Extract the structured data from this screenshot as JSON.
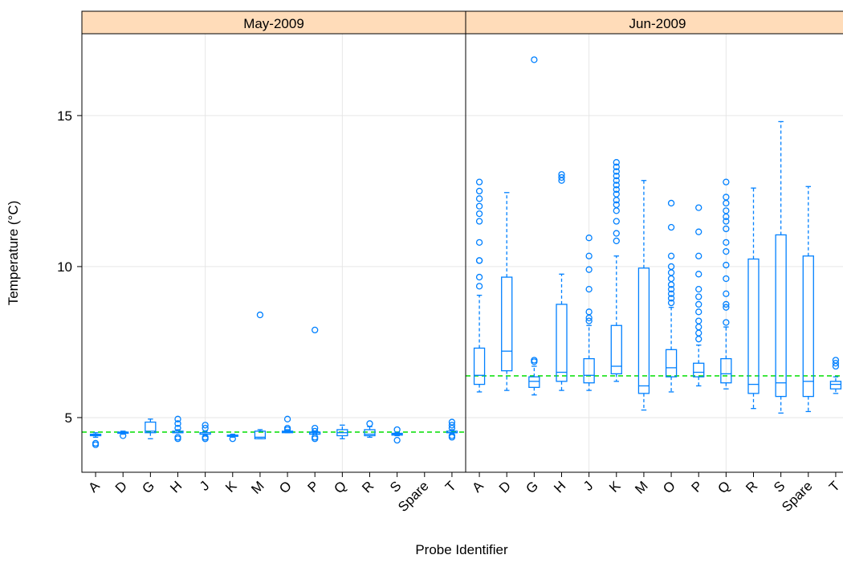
{
  "chart_data": {
    "type": "box",
    "y_label": "Temperature (°C)",
    "x_label": "Probe Identifier",
    "categories": [
      "A",
      "D",
      "G",
      "H",
      "J",
      "K",
      "M",
      "O",
      "P",
      "Q",
      "R",
      "S",
      "Spare",
      "T"
    ],
    "ylim": [
      3.19,
      17.71
    ],
    "yticks": [
      5,
      10,
      15
    ],
    "grid": true,
    "color": "#0080ff",
    "reference_color": "#00dd00",
    "strip_color": "#ffdcb9",
    "panels": [
      {
        "title": "May-2009",
        "reference": 4.52,
        "boxes": [
          {
            "whislo": 4.35,
            "q1": 4.4,
            "med": 4.43,
            "q3": 4.45,
            "whishi": 4.5,
            "fliers": [
              4.1,
              4.15
            ]
          },
          {
            "whislo": 4.45,
            "q1": 4.48,
            "med": 4.5,
            "q3": 4.52,
            "whishi": 4.55,
            "fliers": [
              4.4
            ]
          },
          {
            "whislo": 4.3,
            "q1": 4.5,
            "med": 4.55,
            "q3": 4.85,
            "whishi": 4.95,
            "fliers": []
          },
          {
            "whislo": 4.5,
            "q1": 4.5,
            "med": 4.5,
            "q3": 4.55,
            "whishi": 4.6,
            "fliers": [
              4.3,
              4.35,
              4.65,
              4.8,
              4.95
            ]
          },
          {
            "whislo": 4.4,
            "q1": 4.45,
            "med": 4.5,
            "q3": 4.5,
            "whishi": 4.55,
            "fliers": [
              4.3,
              4.35,
              4.65,
              4.75
            ]
          },
          {
            "whislo": 4.35,
            "q1": 4.38,
            "med": 4.4,
            "q3": 4.42,
            "whishi": 4.45,
            "fliers": [
              4.3
            ]
          },
          {
            "whislo": 4.3,
            "q1": 4.3,
            "med": 4.35,
            "q3": 4.55,
            "whishi": 4.6,
            "fliers": [
              8.4
            ]
          },
          {
            "whislo": 4.5,
            "q1": 4.5,
            "med": 4.52,
            "q3": 4.55,
            "whishi": 4.6,
            "fliers": [
              4.6,
              4.65,
              4.95
            ]
          },
          {
            "whislo": 4.45,
            "q1": 4.45,
            "med": 4.5,
            "q3": 4.52,
            "whishi": 4.55,
            "fliers": [
              4.3,
              4.35,
              4.55,
              4.65,
              7.9
            ]
          },
          {
            "whislo": 4.3,
            "q1": 4.4,
            "med": 4.5,
            "q3": 4.6,
            "whishi": 4.75,
            "fliers": []
          },
          {
            "whislo": 4.35,
            "q1": 4.4,
            "med": 4.45,
            "q3": 4.6,
            "whishi": 4.7,
            "fliers": [
              4.8
            ]
          },
          {
            "whislo": 4.4,
            "q1": 4.42,
            "med": 4.45,
            "q3": 4.48,
            "whishi": 4.5,
            "fliers": [
              4.25,
              4.6
            ]
          },
          null,
          {
            "whislo": 4.45,
            "q1": 4.5,
            "med": 4.5,
            "q3": 4.55,
            "whishi": 4.6,
            "fliers": [
              4.35,
              4.4,
              4.65,
              4.75,
              4.85
            ]
          }
        ]
      },
      {
        "title": "Jun-2009",
        "reference": 6.38,
        "boxes": [
          {
            "whislo": 5.85,
            "q1": 6.1,
            "med": 6.4,
            "q3": 7.3,
            "whishi": 9.05,
            "fliers": [
              9.35,
              9.65,
              10.2,
              10.2,
              10.8,
              11.5,
              11.75,
              12.0,
              12.25,
              12.5,
              12.8
            ]
          },
          {
            "whislo": 5.9,
            "q1": 6.55,
            "med": 7.2,
            "q3": 9.65,
            "whishi": 12.45,
            "fliers": []
          },
          {
            "whislo": 5.75,
            "q1": 6.0,
            "med": 6.2,
            "q3": 6.35,
            "whishi": 6.7,
            "fliers": [
              6.85,
              6.9,
              16.85
            ]
          },
          {
            "whislo": 5.9,
            "q1": 6.2,
            "med": 6.5,
            "q3": 8.75,
            "whishi": 9.75,
            "fliers": [
              12.85,
              12.95,
              13.05
            ]
          },
          {
            "whislo": 5.9,
            "q1": 6.15,
            "med": 6.4,
            "q3": 6.95,
            "whishi": 8.05,
            "fliers": [
              8.2,
              8.3,
              8.5,
              9.25,
              9.9,
              10.35,
              10.95
            ]
          },
          {
            "whislo": 6.2,
            "q1": 6.45,
            "med": 6.7,
            "q3": 8.05,
            "whishi": 10.35,
            "fliers": [
              10.85,
              11.1,
              11.5,
              11.85,
              12.05,
              12.2,
              12.4,
              12.55,
              12.7,
              12.85,
              13.0,
              13.15,
              13.3,
              13.45
            ]
          },
          {
            "whislo": 5.25,
            "q1": 5.8,
            "med": 6.05,
            "q3": 9.95,
            "whishi": 12.85,
            "fliers": []
          },
          {
            "whislo": 5.85,
            "q1": 6.35,
            "med": 6.65,
            "q3": 7.25,
            "whishi": 8.65,
            "fliers": [
              8.8,
              8.95,
              9.1,
              9.25,
              9.4,
              9.6,
              9.8,
              10.0,
              10.35,
              11.3,
              12.1
            ]
          },
          {
            "whislo": 6.05,
            "q1": 6.35,
            "med": 6.5,
            "q3": 6.8,
            "whishi": 7.4,
            "fliers": [
              7.6,
              7.8,
              8.0,
              8.2,
              8.5,
              8.75,
              9.0,
              9.25,
              9.75,
              10.35,
              11.15,
              11.95
            ]
          },
          {
            "whislo": 5.95,
            "q1": 6.15,
            "med": 6.45,
            "q3": 6.95,
            "whishi": 8.0,
            "fliers": [
              8.15,
              8.65,
              8.75,
              9.1,
              9.6,
              10.05,
              10.5,
              10.8,
              11.25,
              11.5,
              11.65,
              11.85,
              12.1,
              12.3,
              12.8
            ]
          },
          {
            "whislo": 5.3,
            "q1": 5.8,
            "med": 6.1,
            "q3": 10.25,
            "whishi": 12.6,
            "fliers": []
          },
          {
            "whislo": 5.15,
            "q1": 5.7,
            "med": 6.15,
            "q3": 11.05,
            "whishi": 14.8,
            "fliers": []
          },
          {
            "whislo": 5.2,
            "q1": 5.7,
            "med": 6.2,
            "q3": 10.35,
            "whishi": 12.65,
            "fliers": []
          },
          {
            "whislo": 5.8,
            "q1": 5.95,
            "med": 6.1,
            "q3": 6.2,
            "whishi": 6.35,
            "fliers": [
              6.7,
              6.8,
              6.9
            ]
          }
        ]
      }
    ]
  }
}
